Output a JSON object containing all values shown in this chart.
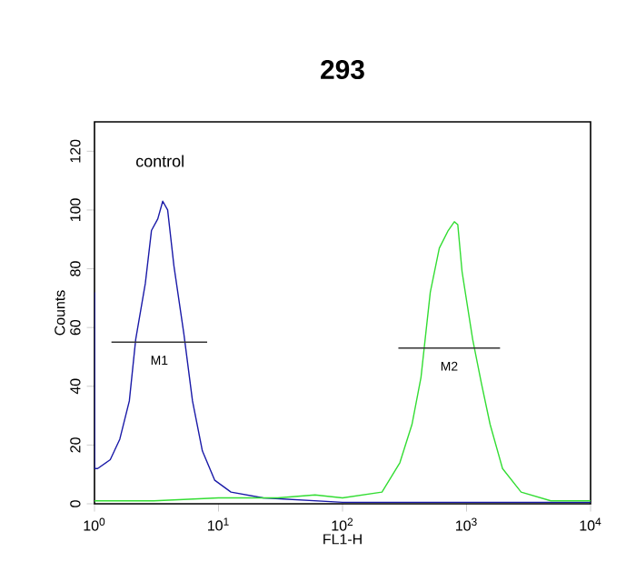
{
  "chart_data": {
    "type": "line",
    "title": "293",
    "xlabel": "FL1-H",
    "ylabel": "Counts",
    "log": "x",
    "xlim": [
      1,
      10000
    ],
    "ylim": [
      0,
      130
    ],
    "xticks": [
      {
        "value": 1,
        "label": "10$^{0}$"
      },
      {
        "value": 10,
        "label": "10$^{1}$"
      },
      {
        "value": 100,
        "label": "10$^{2}$"
      },
      {
        "value": 1000,
        "label": "10$^{3}$"
      },
      {
        "value": 10000,
        "label": "10$^{4}$"
      }
    ],
    "yticks": [
      0,
      20,
      40,
      60,
      80,
      100,
      120
    ],
    "grid": false,
    "series": [
      {
        "color": "#1a1aa8",
        "x": [
          1,
          1,
          1.06,
          1.34,
          1.6,
          1.91,
          2.15,
          2.57,
          2.88,
          3.24,
          3.55,
          3.89,
          4.37,
          5.25,
          6.17,
          7.41,
          9.33,
          12.6,
          22.9,
          100,
          1000,
          10000
        ],
        "values": [
          72,
          12,
          12,
          15,
          22,
          35,
          56,
          75,
          93,
          97,
          103,
          100,
          81,
          58,
          35,
          18,
          8,
          4,
          2,
          0.5,
          0.5,
          0.5
        ]
      },
      {
        "color": "#33dd33",
        "x": [
          1,
          3,
          10,
          30,
          60,
          100,
          208,
          290,
          363,
          429,
          510,
          603,
          711,
          797,
          850,
          920,
          1120,
          1318,
          1549,
          1950,
          2754,
          4786,
          10000
        ],
        "values": [
          1,
          1,
          2,
          2,
          3,
          2,
          4,
          14,
          27,
          43,
          72,
          87,
          93,
          96,
          95,
          79,
          56,
          41,
          27,
          12,
          4,
          1,
          1
        ]
      },
      {
        "color": "#333333",
        "x": [
          1.37,
          8.1
        ],
        "values": [
          55,
          55
        ]
      },
      {
        "color": "#333333",
        "x": [
          282,
          1862
        ],
        "values": [
          53,
          53
        ]
      }
    ],
    "annotations": [
      "control",
      "M1",
      "M2"
    ]
  }
}
